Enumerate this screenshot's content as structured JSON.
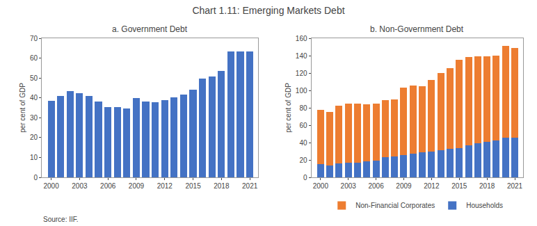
{
  "title": "Chart 1.11: Emerging Markets Debt",
  "annotations": [
    {
      "text": "Source: IIF."
    }
  ],
  "chart_data": [
    {
      "type": "bar",
      "title": "a. Government Debt",
      "ylabel": "per cent of GDP",
      "x": [
        2000,
        2001,
        2002,
        2003,
        2004,
        2005,
        2006,
        2007,
        2008,
        2009,
        2010,
        2011,
        2012,
        2013,
        2014,
        2015,
        2016,
        2017,
        2018,
        2019,
        2020,
        2021
      ],
      "values": [
        38.5,
        41.0,
        43.5,
        42.5,
        40.8,
        38.0,
        35.5,
        35.5,
        34.7,
        39.8,
        38.3,
        37.8,
        38.8,
        40.2,
        41.8,
        44.2,
        49.8,
        50.8,
        53.5,
        63.3,
        63.3,
        63.3
      ],
      "color": "#4472C4",
      "xlim": [
        1999.0,
        2021.9
      ],
      "xticks": [
        2000,
        2003,
        2006,
        2009,
        2012,
        2015,
        2018,
        2021
      ],
      "ylim": [
        0,
        70
      ],
      "yticks": [
        0,
        10,
        20,
        30,
        40,
        50,
        60,
        70
      ],
      "grid": false
    },
    {
      "type": "bar",
      "title": "b. Non-Government Debt",
      "ylabel": "per cent of GDP",
      "x": [
        2000,
        2001,
        2002,
        2003,
        2004,
        2005,
        2006,
        2007,
        2008,
        2009,
        2010,
        2011,
        2012,
        2013,
        2014,
        2015,
        2016,
        2017,
        2018,
        2019,
        2020,
        2021
      ],
      "series": [
        {
          "name": "Households",
          "color": "#4472C4",
          "values": [
            15.0,
            14.0,
            16.0,
            16.5,
            17.0,
            18.5,
            19.0,
            23.0,
            24.0,
            26.0,
            27.5,
            28.5,
            29.5,
            31.5,
            33.0,
            34.0,
            37.0,
            39.5,
            40.5,
            42.5,
            46.0,
            45.5
          ]
        },
        {
          "name": "Non-Financial Corporates",
          "color": "#ED7D31",
          "values": [
            62.5,
            61.5,
            66.5,
            68.5,
            67.5,
            65.5,
            65.5,
            65.5,
            65.5,
            77.5,
            78.0,
            76.5,
            82.5,
            88.5,
            92.5,
            101.5,
            101.5,
            99.5,
            98.5,
            97.5,
            105.5,
            103.0
          ]
        }
      ],
      "stacked": true,
      "xlim": [
        1999.0,
        2021.9
      ],
      "xticks": [
        2000,
        2003,
        2006,
        2009,
        2012,
        2015,
        2018,
        2021
      ],
      "ylim": [
        0,
        160
      ],
      "yticks": [
        0,
        20,
        40,
        60,
        80,
        100,
        120,
        140,
        160
      ],
      "grid": false,
      "legend": "bottom"
    }
  ]
}
